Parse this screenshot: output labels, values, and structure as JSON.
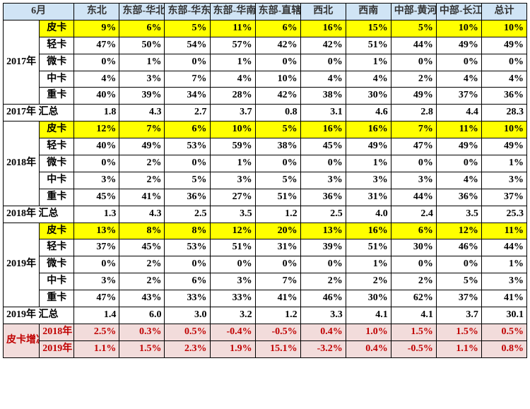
{
  "header": {
    "month": "6月",
    "cols": [
      "东北",
      "东部-华北",
      "东部-华东",
      "东部-华南",
      "东部-直辖",
      "西北",
      "西南",
      "中部-黄河",
      "中部-长江",
      "总计"
    ]
  },
  "years": [
    {
      "label": "2017年",
      "rows": [
        {
          "cat": "皮卡",
          "hi": true,
          "vals": [
            "9%",
            "6%",
            "5%",
            "11%",
            "6%",
            "16%",
            "15%",
            "5%",
            "10%",
            "10%"
          ]
        },
        {
          "cat": "轻卡",
          "vals": [
            "47%",
            "50%",
            "54%",
            "57%",
            "42%",
            "42%",
            "51%",
            "44%",
            "49%",
            "49%"
          ]
        },
        {
          "cat": "微卡",
          "vals": [
            "0%",
            "1%",
            "0%",
            "1%",
            "0%",
            "0%",
            "1%",
            "0%",
            "0%",
            "0%"
          ]
        },
        {
          "cat": "中卡",
          "vals": [
            "4%",
            "3%",
            "7%",
            "4%",
            "10%",
            "4%",
            "4%",
            "2%",
            "4%",
            "4%"
          ]
        },
        {
          "cat": "重卡",
          "vals": [
            "40%",
            "39%",
            "34%",
            "28%",
            "42%",
            "38%",
            "30%",
            "49%",
            "37%",
            "36%"
          ]
        }
      ],
      "summary": {
        "label": "2017年 汇总",
        "vals": [
          "1.8",
          "4.3",
          "2.7",
          "3.7",
          "0.8",
          "3.1",
          "4.6",
          "2.8",
          "4.4",
          "28.3"
        ]
      }
    },
    {
      "label": "2018年",
      "rows": [
        {
          "cat": "皮卡",
          "hi": true,
          "vals": [
            "12%",
            "7%",
            "6%",
            "10%",
            "5%",
            "16%",
            "16%",
            "7%",
            "11%",
            "10%"
          ]
        },
        {
          "cat": "轻卡",
          "vals": [
            "40%",
            "49%",
            "53%",
            "59%",
            "38%",
            "45%",
            "49%",
            "47%",
            "49%",
            "49%"
          ]
        },
        {
          "cat": "微卡",
          "vals": [
            "0%",
            "2%",
            "0%",
            "1%",
            "0%",
            "0%",
            "1%",
            "0%",
            "0%",
            "1%"
          ]
        },
        {
          "cat": "中卡",
          "vals": [
            "3%",
            "2%",
            "5%",
            "3%",
            "5%",
            "3%",
            "3%",
            "3%",
            "4%",
            "3%"
          ]
        },
        {
          "cat": "重卡",
          "vals": [
            "45%",
            "41%",
            "36%",
            "27%",
            "51%",
            "36%",
            "31%",
            "44%",
            "36%",
            "37%"
          ]
        }
      ],
      "summary": {
        "label": "2018年 汇总",
        "vals": [
          "1.3",
          "4.3",
          "2.5",
          "3.5",
          "1.2",
          "2.5",
          "4.0",
          "2.4",
          "3.5",
          "25.3"
        ]
      }
    },
    {
      "label": "2019年",
      "rows": [
        {
          "cat": "皮卡",
          "hi": true,
          "vals": [
            "13%",
            "8%",
            "8%",
            "12%",
            "20%",
            "13%",
            "16%",
            "6%",
            "12%",
            "11%"
          ]
        },
        {
          "cat": "轻卡",
          "vals": [
            "37%",
            "45%",
            "53%",
            "51%",
            "31%",
            "39%",
            "51%",
            "30%",
            "46%",
            "44%"
          ]
        },
        {
          "cat": "微卡",
          "vals": [
            "0%",
            "2%",
            "0%",
            "0%",
            "0%",
            "0%",
            "1%",
            "0%",
            "0%",
            "1%"
          ]
        },
        {
          "cat": "中卡",
          "vals": [
            "3%",
            "2%",
            "6%",
            "3%",
            "7%",
            "2%",
            "2%",
            "2%",
            "5%",
            "3%"
          ]
        },
        {
          "cat": "重卡",
          "vals": [
            "47%",
            "43%",
            "33%",
            "33%",
            "41%",
            "46%",
            "30%",
            "62%",
            "37%",
            "41%"
          ]
        }
      ],
      "summary": {
        "label": "2019年 汇总",
        "vals": [
          "1.4",
          "6.0",
          "3.0",
          "3.2",
          "1.2",
          "3.3",
          "4.1",
          "4.1",
          "3.7",
          "30.1"
        ]
      }
    }
  ],
  "growth": {
    "label": "皮卡增减",
    "rows": [
      {
        "year": "2018年",
        "vals": [
          "2.5%",
          "0.3%",
          "0.5%",
          "-0.4%",
          "-0.5%",
          "0.4%",
          "1.0%",
          "1.5%",
          "1.5%",
          "0.5%"
        ]
      },
      {
        "year": "2019年",
        "vals": [
          "1.1%",
          "1.5%",
          "2.3%",
          "1.9%",
          "15.1%",
          "-3.2%",
          "0.4%",
          "-0.5%",
          "1.1%",
          "0.8%"
        ]
      }
    ]
  }
}
